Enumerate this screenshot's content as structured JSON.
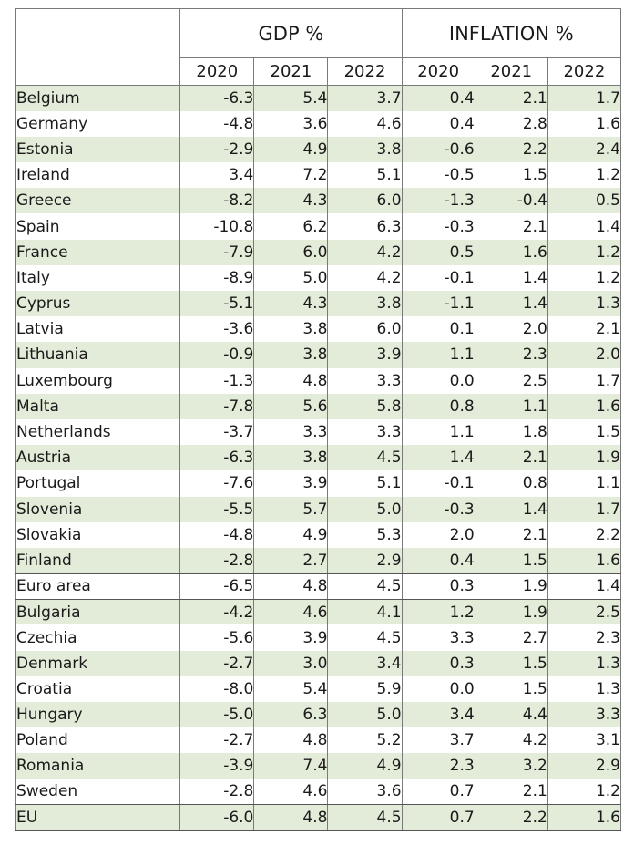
{
  "header": {
    "gdp": "GDP %",
    "inflation": "INFLATION %",
    "years": [
      "2020",
      "2021",
      "2022",
      "2020",
      "2021",
      "2022"
    ]
  },
  "rows": [
    {
      "country": "Belgium",
      "values": [
        "-6.3",
        "5.4",
        "3.7",
        "0.4",
        "2.1",
        "1.7"
      ]
    },
    {
      "country": "Germany",
      "values": [
        "-4.8",
        "3.6",
        "4.6",
        "0.4",
        "2.8",
        "1.6"
      ]
    },
    {
      "country": "Estonia",
      "values": [
        "-2.9",
        "4.9",
        "3.8",
        "-0.6",
        "2.2",
        "2.4"
      ]
    },
    {
      "country": "Ireland",
      "values": [
        "3.4",
        "7.2",
        "5.1",
        "-0.5",
        "1.5",
        "1.2"
      ]
    },
    {
      "country": "Greece",
      "values": [
        "-8.2",
        "4.3",
        "6.0",
        "-1.3",
        "-0.4",
        "0.5"
      ]
    },
    {
      "country": "Spain",
      "values": [
        "-10.8",
        "6.2",
        "6.3",
        "-0.3",
        "2.1",
        "1.4"
      ]
    },
    {
      "country": "France",
      "values": [
        "-7.9",
        "6.0",
        "4.2",
        "0.5",
        "1.6",
        "1.2"
      ]
    },
    {
      "country": "Italy",
      "values": [
        "-8.9",
        "5.0",
        "4.2",
        "-0.1",
        "1.4",
        "1.2"
      ]
    },
    {
      "country": "Cyprus",
      "values": [
        "-5.1",
        "4.3",
        "3.8",
        "-1.1",
        "1.4",
        "1.3"
      ]
    },
    {
      "country": "Latvia",
      "values": [
        "-3.6",
        "3.8",
        "6.0",
        "0.1",
        "2.0",
        "2.1"
      ]
    },
    {
      "country": "Lithuania",
      "values": [
        "-0.9",
        "3.8",
        "3.9",
        "1.1",
        "2.3",
        "2.0"
      ]
    },
    {
      "country": "Luxembourg",
      "values": [
        "-1.3",
        "4.8",
        "3.3",
        "0.0",
        "2.5",
        "1.7"
      ]
    },
    {
      "country": "Malta",
      "values": [
        "-7.8",
        "5.6",
        "5.8",
        "0.8",
        "1.1",
        "1.6"
      ]
    },
    {
      "country": "Netherlands",
      "values": [
        "-3.7",
        "3.3",
        "3.3",
        "1.1",
        "1.8",
        "1.5"
      ]
    },
    {
      "country": "Austria",
      "values": [
        "-6.3",
        "3.8",
        "4.5",
        "1.4",
        "2.1",
        "1.9"
      ]
    },
    {
      "country": "Portugal",
      "values": [
        "-7.6",
        "3.9",
        "5.1",
        "-0.1",
        "0.8",
        "1.1"
      ]
    },
    {
      "country": "Slovenia",
      "values": [
        "-5.5",
        "5.7",
        "5.0",
        "-0.3",
        "1.4",
        "1.7"
      ]
    },
    {
      "country": "Slovakia",
      "values": [
        "-4.8",
        "4.9",
        "5.3",
        "2.0",
        "2.1",
        "2.2"
      ]
    },
    {
      "country": "Finland",
      "values": [
        "-2.8",
        "2.7",
        "2.9",
        "0.4",
        "1.5",
        "1.6"
      ]
    },
    {
      "country": "Euro area",
      "values": [
        "-6.5",
        "4.8",
        "4.5",
        "0.3",
        "1.9",
        "1.4"
      ]
    },
    {
      "country": "Bulgaria",
      "values": [
        "-4.2",
        "4.6",
        "4.1",
        "1.2",
        "1.9",
        "2.5"
      ]
    },
    {
      "country": "Czechia",
      "values": [
        "-5.6",
        "3.9",
        "4.5",
        "3.3",
        "2.7",
        "2.3"
      ]
    },
    {
      "country": "Denmark",
      "values": [
        "-2.7",
        "3.0",
        "3.4",
        "0.3",
        "1.5",
        "1.3"
      ]
    },
    {
      "country": "Croatia",
      "values": [
        "-8.0",
        "5.4",
        "5.9",
        "0.0",
        "1.5",
        "1.3"
      ]
    },
    {
      "country": "Hungary",
      "values": [
        "-5.0",
        "6.3",
        "5.0",
        "3.4",
        "4.4",
        "3.3"
      ]
    },
    {
      "country": "Poland",
      "values": [
        "-2.7",
        "4.8",
        "5.2",
        "3.7",
        "4.2",
        "3.1"
      ]
    },
    {
      "country": "Romania",
      "values": [
        "-3.9",
        "7.4",
        "4.9",
        "2.3",
        "3.2",
        "2.9"
      ]
    },
    {
      "country": "Sweden",
      "values": [
        "-2.8",
        "4.6",
        "3.6",
        "0.7",
        "2.1",
        "1.2"
      ]
    },
    {
      "country": "EU",
      "values": [
        "-6.0",
        "4.8",
        "4.5",
        "0.7",
        "2.2",
        "1.6"
      ]
    }
  ],
  "colors": {
    "row_green": "#e3ecd8",
    "row_white": "#ffffff",
    "border": "#7a7a7a"
  }
}
